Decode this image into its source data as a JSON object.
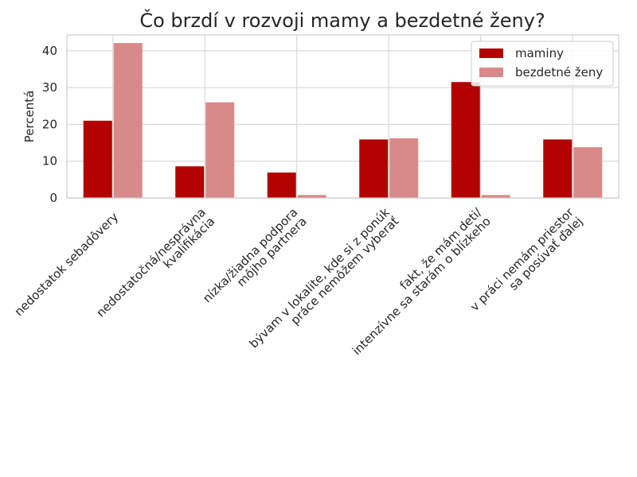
{
  "chart_data": {
    "type": "bar",
    "title": "Čo brzdí v rozvoji mamy a bezdetné ženy?",
    "xlabel": "",
    "ylabel": "Percentá",
    "ylim": [
      0,
      44.3
    ],
    "yticks": [
      0,
      10,
      20,
      30,
      40
    ],
    "grid": true,
    "legend_position": "top-right",
    "categories": [
      [
        "nedostatok sebadôvery"
      ],
      [
        "nedostatočná/nesprávna",
        "kvalifikácia"
      ],
      [
        "nízka/žiadna podpora",
        "môjho partnera"
      ],
      [
        "bývam v lokalite, kde si z ponúk",
        "práce nemôžem vyberať"
      ],
      [
        "fakt, že mám deti/",
        "intenzívne sa starám o blízkeho"
      ],
      [
        "v práci nemám priestor",
        "sa posúvať ďalej"
      ]
    ],
    "series": [
      {
        "name": "maminy",
        "color": "#b30000",
        "values": [
          21.0,
          8.6,
          6.9,
          15.9,
          31.5,
          15.9
        ]
      },
      {
        "name": "bezdetné ženy",
        "color": "#d88a88",
        "values": [
          42.1,
          26.0,
          0.8,
          16.2,
          0.8,
          13.8
        ]
      }
    ]
  }
}
